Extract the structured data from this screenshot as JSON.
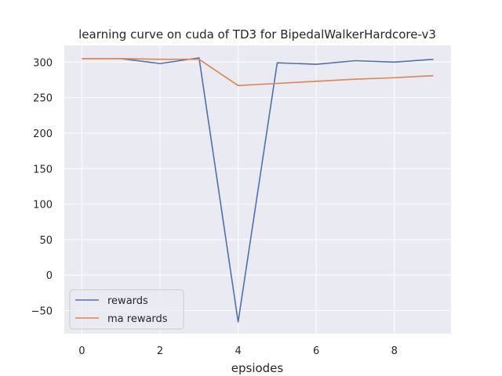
{
  "chart_data": {
    "type": "line",
    "title": "learning curve on cuda of TD3 for BipedalWalkerHardcore-v3",
    "xlabel": "epsiodes",
    "ylabel": "",
    "x": [
      0,
      1,
      2,
      3,
      4,
      5,
      6,
      7,
      8,
      9
    ],
    "xlim": [
      -0.45,
      9.45
    ],
    "ylim": [
      -82.5,
      323.5
    ],
    "xticks": [
      0,
      2,
      4,
      6,
      8
    ],
    "xtick_labels": [
      "0",
      "2",
      "4",
      "6",
      "8"
    ],
    "yticks": [
      -50,
      0,
      50,
      100,
      150,
      200,
      250,
      300
    ],
    "ytick_labels": [
      "−50",
      "0",
      "50",
      "100",
      "150",
      "200",
      "250",
      "300"
    ],
    "grid": true,
    "legend_position": "lower-left",
    "series": [
      {
        "name": "rewards",
        "color": "#4c72b0",
        "values": [
          305,
          305,
          298,
          306,
          -66,
          299,
          297,
          302,
          300,
          304
        ]
      },
      {
        "name": "ma rewards",
        "color": "#dd8452",
        "values": [
          305,
          305,
          304,
          304,
          267,
          270,
          273,
          276,
          278,
          281
        ]
      }
    ]
  }
}
